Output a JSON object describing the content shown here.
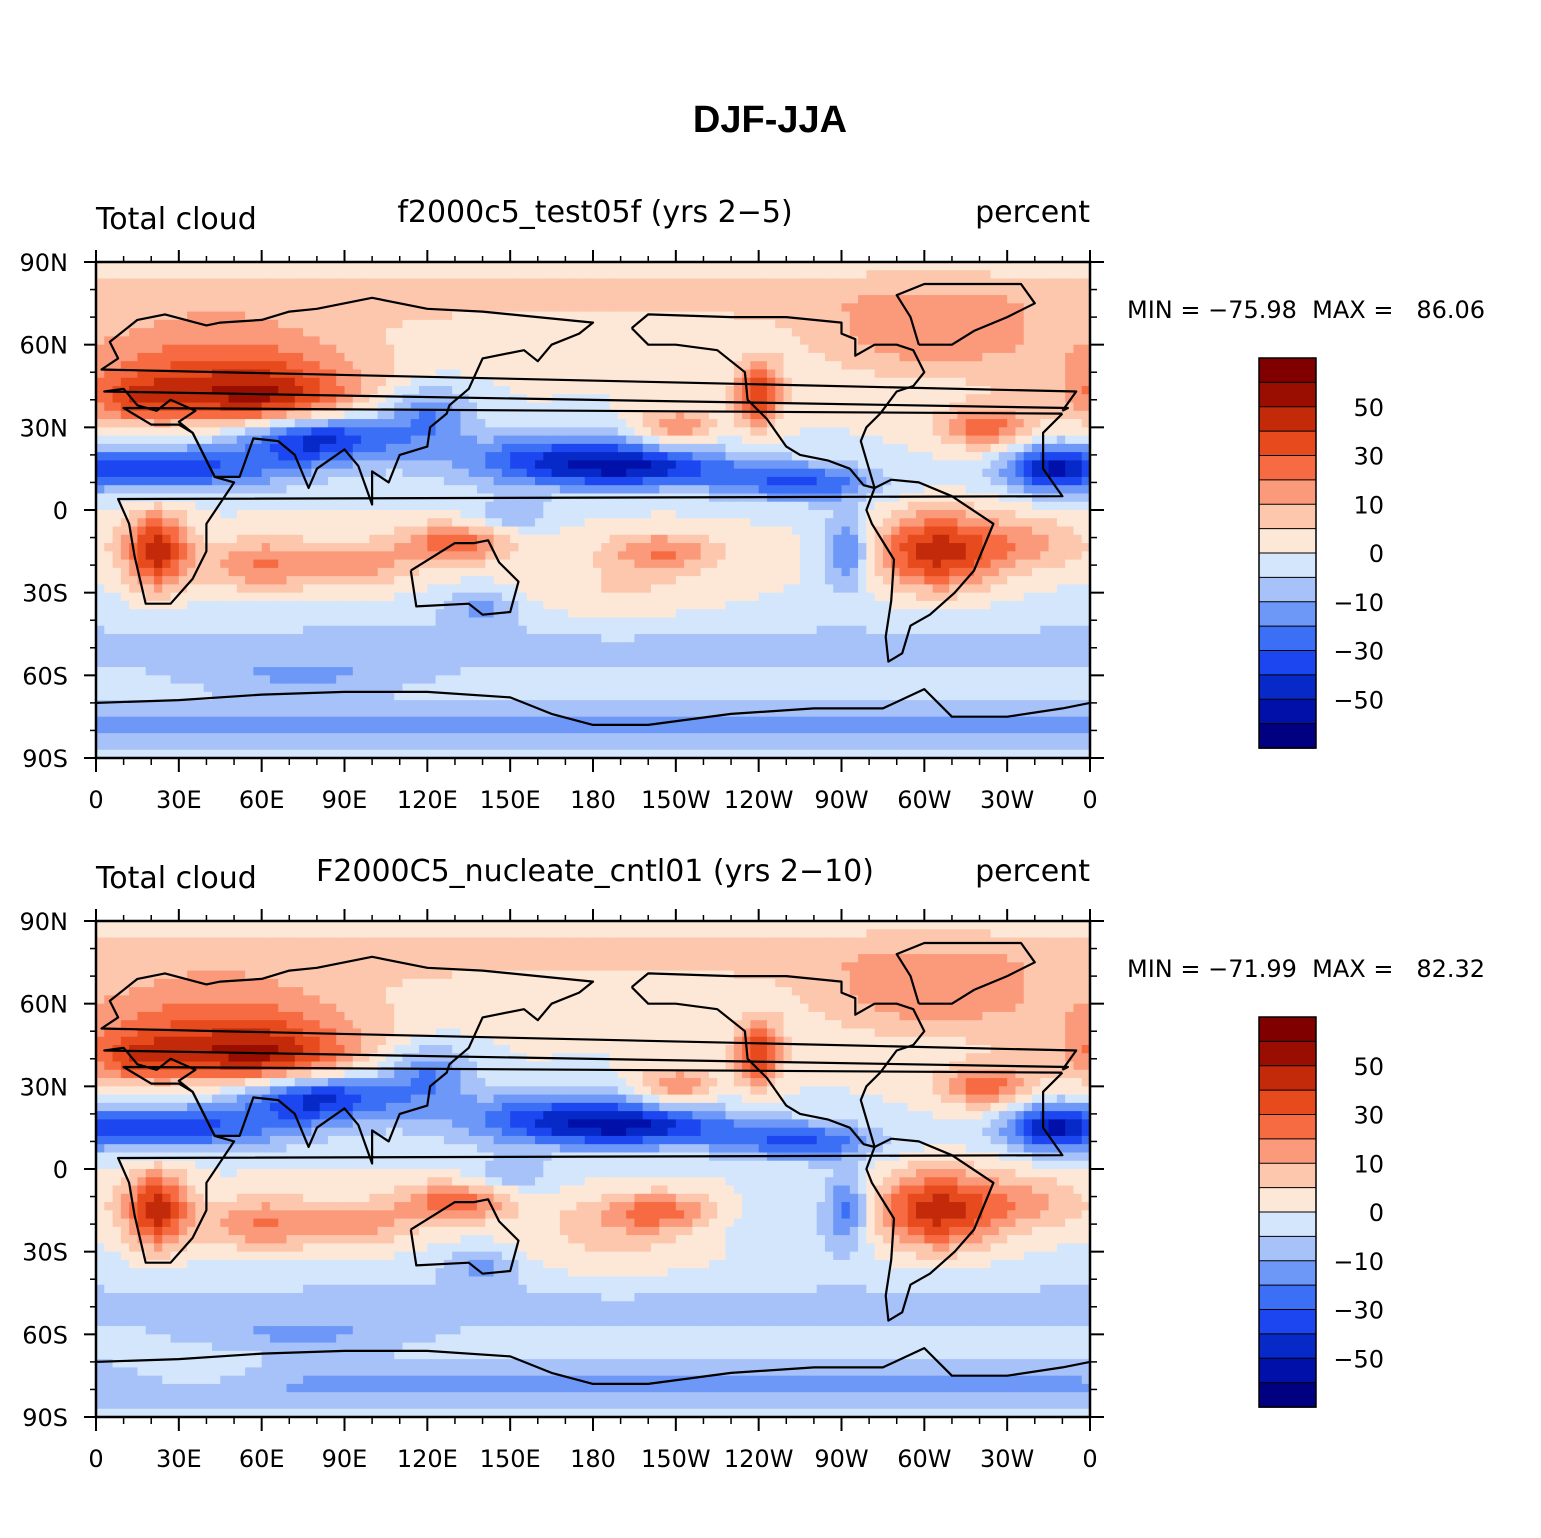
{
  "title": "DJF-JJA",
  "colors": {
    "levels": [
      "#000080",
      "#0010a8",
      "#0629c8",
      "#1c46f0",
      "#3b6ff5",
      "#6e98f7",
      "#a6c2f9",
      "#d4e6fc",
      "#fde8d8",
      "#fcc7ad",
      "#fb9a7a",
      "#f76b43",
      "#e64a1d",
      "#c22a0a",
      "#9a0e02",
      "#800000"
    ],
    "coast": "#000000",
    "frame": "#000000"
  },
  "colorbar": {
    "labels": [
      "50",
      "30",
      "10",
      "0",
      "−10",
      "−30",
      "−50"
    ]
  },
  "chart_data": [
    {
      "type": "heatmap",
      "id": "panel-1",
      "left_title": "Total cloud",
      "center_title": "f2000c5_test05f (yrs 2−5)",
      "right_title": "percent",
      "stats_text": "MIN = −75.98  MAX =   86.06",
      "min": -75.98,
      "max": 86.06,
      "xlabel": "",
      "ylabel": "",
      "x_ticks": [
        "0",
        "30E",
        "60E",
        "90E",
        "120E",
        "150E",
        "180",
        "150W",
        "120W",
        "90W",
        "60W",
        "30W",
        "0"
      ],
      "y_ticks": [
        "90N",
        "60N",
        "30N",
        "0",
        "30S",
        "60S",
        "90S"
      ],
      "xlim": [
        0,
        360
      ],
      "ylim": [
        -90,
        90
      ]
    },
    {
      "type": "heatmap",
      "id": "panel-2",
      "left_title": "Total cloud",
      "center_title": "F2000C5_nucleate_cntl01 (yrs 2−10)",
      "right_title": "percent",
      "stats_text": "MIN = −71.99  MAX =   82.32",
      "min": -71.99,
      "max": 82.32,
      "xlabel": "",
      "ylabel": "",
      "x_ticks": [
        "0",
        "30E",
        "60E",
        "90E",
        "120E",
        "150E",
        "180",
        "150W",
        "120W",
        "90W",
        "60W",
        "30W",
        "0"
      ],
      "y_ticks": [
        "90N",
        "60N",
        "30N",
        "0",
        "30S",
        "60S",
        "90S"
      ],
      "xlim": [
        0,
        360
      ],
      "ylim": [
        -90,
        90
      ]
    }
  ]
}
